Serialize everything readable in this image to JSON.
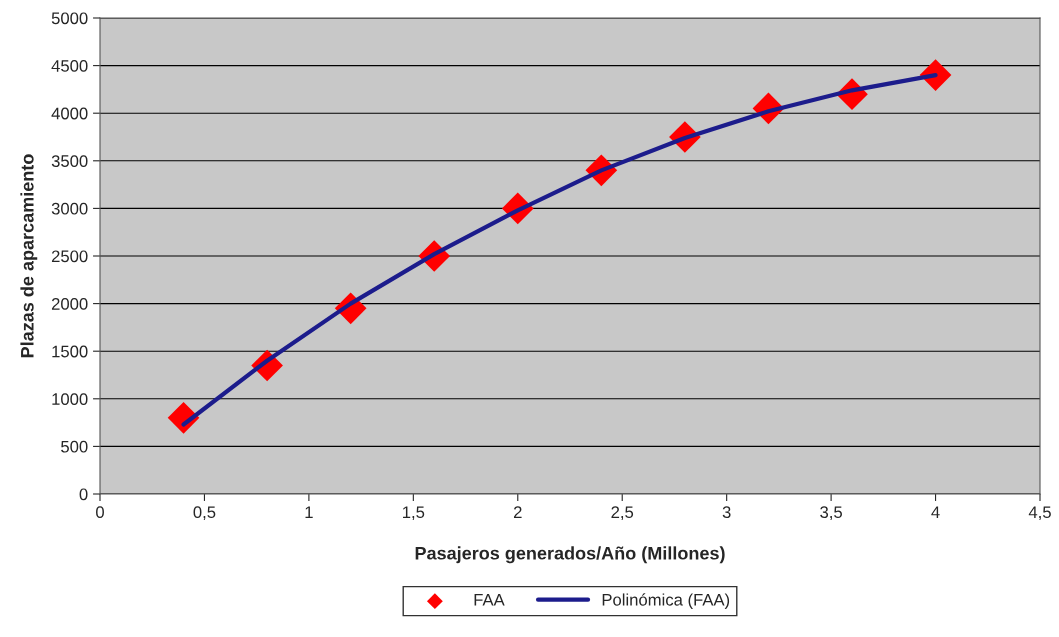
{
  "chart_data": {
    "type": "scatter",
    "xlabel": "Pasajeros generados/Año (Millones)",
    "ylabel": "Plazas de aparcamiento",
    "xlim": [
      0,
      4.5
    ],
    "xticks": [
      0,
      {
        "value": 0.5,
        "label": "0,5"
      },
      1,
      {
        "value": 1.5,
        "label": "1,5"
      },
      2,
      {
        "value": 2.5,
        "label": "2,5"
      },
      3,
      {
        "value": 3.5,
        "label": "3,5"
      },
      4,
      {
        "value": 4.5,
        "label": "4,5"
      }
    ],
    "ylim": [
      0,
      5000
    ],
    "yticks": [
      0,
      500,
      1000,
      1500,
      2000,
      2500,
      3000,
      3500,
      4000,
      4500,
      5000
    ],
    "grid": "y",
    "legend": "bottom",
    "series": [
      {
        "name": "FAA",
        "marker": "diamond",
        "color": "#ff0000",
        "x": [
          0.4,
          0.8,
          1.2,
          1.6,
          2.0,
          2.4,
          2.8,
          3.2,
          3.6,
          4.0
        ],
        "values": [
          800,
          1350,
          1950,
          2500,
          3000,
          3400,
          3750,
          4050,
          4200,
          4400
        ]
      },
      {
        "name": "Polinómica (FAA)",
        "type": "line",
        "line_style": "solid",
        "color": "#1c1c8c",
        "x": [
          0.4,
          0.8,
          1.2,
          1.6,
          2.0,
          2.4,
          2.8,
          3.2,
          3.6,
          4.0
        ],
        "values": [
          730,
          1400,
          2000,
          2520,
          2980,
          3400,
          3740,
          4020,
          4240,
          4400
        ]
      }
    ]
  }
}
